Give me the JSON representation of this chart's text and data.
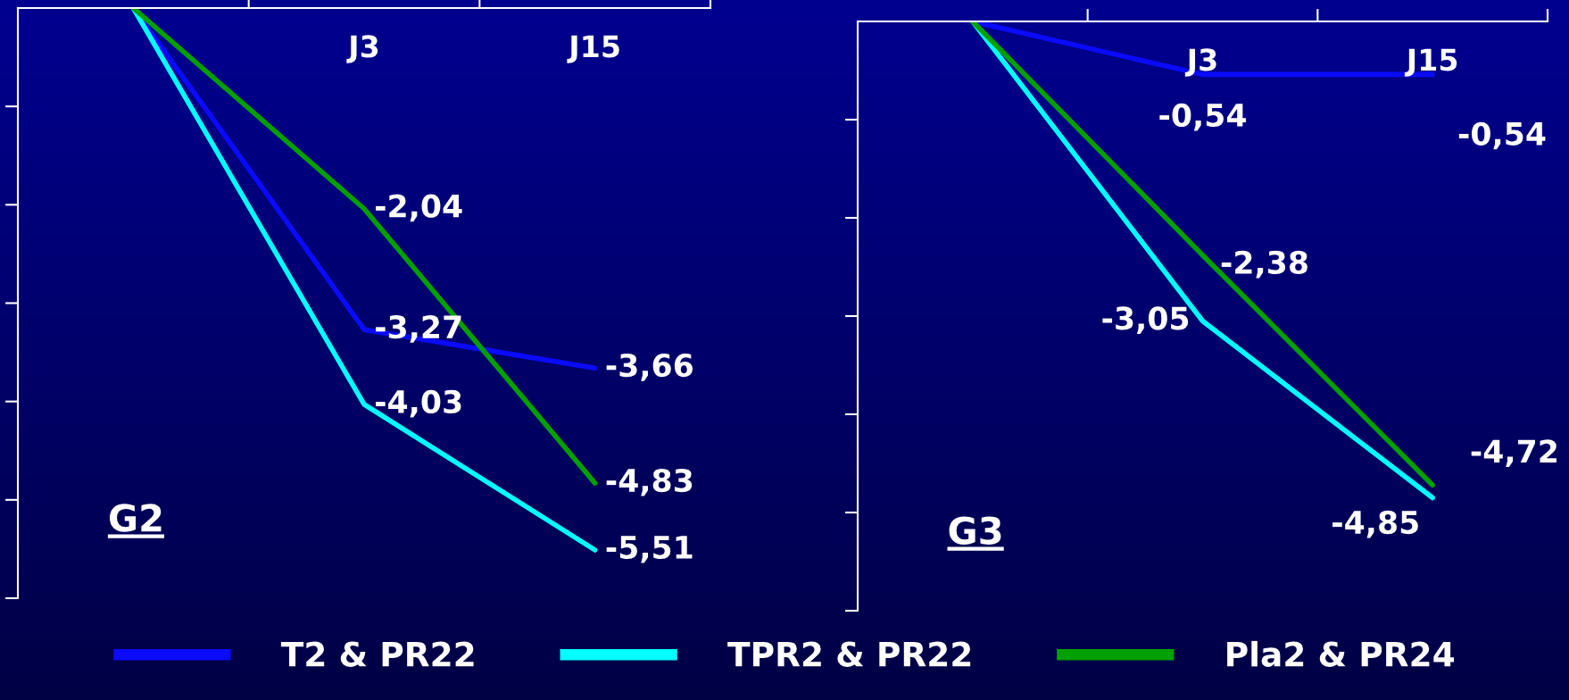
{
  "chart_data": [
    {
      "type": "line",
      "title": "G2",
      "categories": [
        null,
        "J3",
        "J15"
      ],
      "series": [
        {
          "name": "T2 & PR22",
          "color": "#0a0aff",
          "values": [
            0,
            -3.27,
            -3.66
          ],
          "value_labels": [
            null,
            "-3,27",
            "-3,66"
          ]
        },
        {
          "name": "TPR2 & PR22",
          "color": "#00ffff",
          "values": [
            0,
            -4.03,
            -5.51
          ],
          "value_labels": [
            null,
            "-4,03",
            "-5,51"
          ]
        },
        {
          "name": "Pla2 & PR24",
          "color": "#00a000",
          "values": [
            0,
            -2.04,
            -4.83
          ],
          "value_labels": [
            null,
            "-2,04",
            "-4,83"
          ]
        }
      ],
      "ylim": [
        -6,
        0
      ],
      "yticks": [
        {
          "value": -1,
          "label": null
        },
        {
          "value": -2,
          "label": null
        },
        {
          "value": -3,
          "label": null
        },
        {
          "value": -4,
          "label": null
        },
        {
          "value": -5,
          "label": null
        },
        {
          "value": -6,
          "label": null
        }
      ],
      "tick_labels": "x",
      "grid": false,
      "legend": "bottom",
      "marker": "none",
      "line_style": "solid"
    },
    {
      "type": "line",
      "title": "G3",
      "categories": [
        null,
        "J3",
        "J15"
      ],
      "series": [
        {
          "name": "T2 & PR22",
          "color": "#0a0aff",
          "values": [
            0,
            -0.54,
            -0.54
          ],
          "value_labels": [
            null,
            "-0,54",
            "-0,54"
          ]
        },
        {
          "name": "TPR2 & PR22",
          "color": "#00ffff",
          "values": [
            0,
            -3.05,
            -4.85
          ],
          "value_labels": [
            null,
            "-3,05",
            "-4,85"
          ]
        },
        {
          "name": "Pla2 & PR24",
          "color": "#00a000",
          "values": [
            0,
            -2.38,
            -4.72
          ],
          "value_labels": [
            null,
            "-2,38",
            "-4,72"
          ]
        }
      ],
      "ylim": [
        -6,
        0
      ],
      "yticks": [
        {
          "value": -1,
          "label": null
        },
        {
          "value": -2,
          "label": null
        },
        {
          "value": -3,
          "label": null
        },
        {
          "value": -4,
          "label": null
        },
        {
          "value": -5,
          "label": null
        },
        {
          "value": -6,
          "label": null
        }
      ],
      "tick_labels": "x",
      "grid": false,
      "legend": "bottom",
      "marker": "none",
      "line_style": "solid"
    }
  ]
}
